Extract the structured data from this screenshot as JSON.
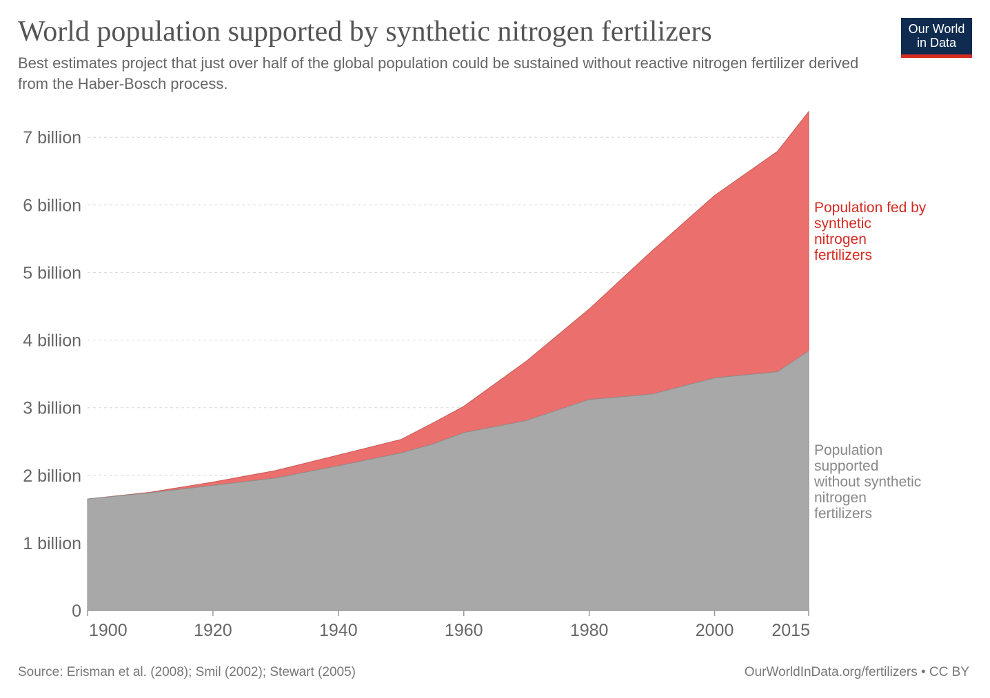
{
  "header": {
    "title": "World population supported by synthetic nitrogen fertilizers",
    "subtitle": "Best estimates project that just over half of the global population could be sustained without reactive nitrogen fertilizer derived from the Haber-Bosch process."
  },
  "logo": {
    "line1": "Our World",
    "line2": "in Data"
  },
  "footer": {
    "source": "Source: Erisman et al. (2008); Smil (2002); Stewart (2005)",
    "credit": "OurWorldInData.org/fertilizers • CC BY"
  },
  "colors": {
    "fed_by_fertilizer": "#eb6f6c",
    "without_fertilizer": "#a8a8a8",
    "fed_label": "#d42b21",
    "without_label": "#888888"
  },
  "chart_data": {
    "type": "area",
    "stacked": true,
    "x": [
      1900,
      1910,
      1920,
      1930,
      1940,
      1950,
      1955,
      1960,
      1970,
      1980,
      1990,
      2000,
      2010,
      2015
    ],
    "series": [
      {
        "name": "Population supported without synthetic nitrogen fertilizers",
        "label_lines": [
          "Population",
          "supported",
          "without synthetic",
          "nitrogen",
          "fertilizers"
        ],
        "values": [
          1.65,
          1.74,
          1.85,
          1.96,
          2.14,
          2.33,
          2.46,
          2.63,
          2.81,
          3.12,
          3.2,
          3.44,
          3.53,
          3.84
        ]
      },
      {
        "name": "Population fed by synthetic nitrogen fertilizers",
        "label_lines": [
          "Population fed by",
          "synthetic",
          "nitrogen",
          "fertilizers"
        ],
        "values": [
          0.0,
          0.01,
          0.05,
          0.11,
          0.16,
          0.2,
          0.31,
          0.39,
          0.88,
          1.34,
          2.12,
          2.7,
          3.26,
          3.54
        ]
      }
    ],
    "xlim": [
      1900,
      2015
    ],
    "ylim": [
      0,
      7.4
    ],
    "y_ticks": [
      {
        "value": 0,
        "label": "0"
      },
      {
        "value": 1,
        "label": "1 billion"
      },
      {
        "value": 2,
        "label": "2 billion"
      },
      {
        "value": 3,
        "label": "3 billion"
      },
      {
        "value": 4,
        "label": "4 billion"
      },
      {
        "value": 5,
        "label": "5 billion"
      },
      {
        "value": 6,
        "label": "6 billion"
      },
      {
        "value": 7,
        "label": "7 billion"
      }
    ],
    "x_ticks": [
      1900,
      1920,
      1940,
      1960,
      1980,
      2000,
      2015
    ],
    "grid": true
  }
}
